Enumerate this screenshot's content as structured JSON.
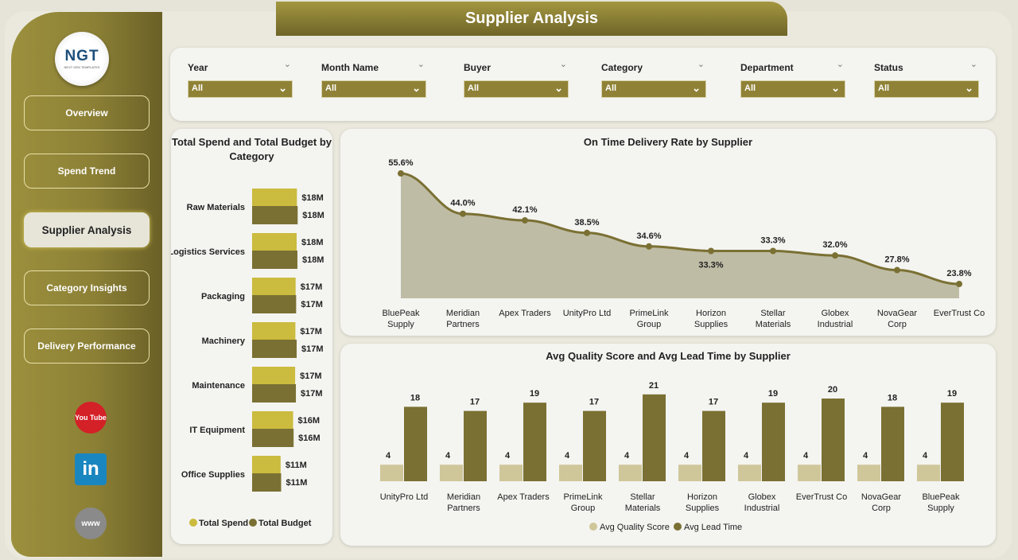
{
  "title": "Supplier Analysis",
  "logo": {
    "text": "NGT",
    "sub": "NEXT GEN TEMPLATES"
  },
  "nav": [
    {
      "label": "Overview"
    },
    {
      "label": "Spend Trend"
    },
    {
      "label": "Supplier Analysis",
      "active": true
    },
    {
      "label": "Category Insights"
    },
    {
      "label": "Delivery Performance"
    }
  ],
  "social": {
    "youtube": "You Tube",
    "linkedin": "in",
    "web": "www"
  },
  "filters": [
    {
      "label": "Year",
      "value": "All"
    },
    {
      "label": "Month Name",
      "value": "All"
    },
    {
      "label": "Buyer",
      "value": "All"
    },
    {
      "label": "Category",
      "value": "All"
    },
    {
      "label": "Department",
      "value": "All"
    },
    {
      "label": "Status",
      "value": "All"
    }
  ],
  "colors": {
    "spend": "#cbbb3e",
    "budget": "#7a7033",
    "line": "#7a7033",
    "area": "#bfbca5",
    "quality": "#cfc79a",
    "lead": "#7a7033"
  },
  "chart_data": [
    {
      "type": "bar",
      "orientation": "horizontal",
      "title": "Total Spend and Total Budget by Category",
      "categories": [
        "Raw Materials",
        "Logistics Services",
        "Packaging",
        "Machinery",
        "Maintenance",
        "IT Equipment",
        "Office Supplies"
      ],
      "series": [
        {
          "name": "Total Spend",
          "values": [
            17.6,
            17.5,
            17.1,
            17.0,
            16.9,
            16.1,
            11.2
          ],
          "labels": [
            "$18M",
            "$18M",
            "$17M",
            "$17M",
            "$17M",
            "$16M",
            "$11M"
          ]
        },
        {
          "name": "Total Budget",
          "values": [
            17.9,
            17.8,
            17.3,
            17.5,
            17.2,
            16.3,
            11.4
          ],
          "labels": [
            "$18M",
            "$18M",
            "$17M",
            "$17M",
            "$17M",
            "$16M",
            "$11M"
          ]
        }
      ],
      "legend": "bottom"
    },
    {
      "type": "area",
      "title": "On Time Delivery Rate by Supplier",
      "categories": [
        "BluePeak Supply",
        "Meridian Partners",
        "Apex Traders",
        "UnityPro Ltd",
        "PrimeLink Group",
        "Horizon Supplies",
        "Stellar Materials",
        "Globex Industrial",
        "NovaGear Corp",
        "EverTrust Co"
      ],
      "values": [
        55.6,
        44.0,
        42.1,
        38.5,
        34.6,
        33.3,
        33.3,
        32.0,
        27.8,
        23.8
      ],
      "labels": [
        "55.6%",
        "44.0%",
        "42.1%",
        "38.5%",
        "34.6%",
        "33.3%",
        "33.3%",
        "32.0%",
        "27.8%",
        "23.8%"
      ]
    },
    {
      "type": "bar",
      "title": "Avg Quality Score and Avg Lead Time by Supplier",
      "categories": [
        "UnityPro Ltd",
        "Meridian Partners",
        "Apex Traders",
        "PrimeLink Group",
        "Stellar Materials",
        "Horizon Supplies",
        "Globex Industrial",
        "EverTrust Co",
        "NovaGear Corp",
        "BluePeak Supply"
      ],
      "series": [
        {
          "name": "Avg Quality Score",
          "values": [
            4,
            4,
            4,
            4,
            4,
            4,
            4,
            4,
            4,
            4
          ]
        },
        {
          "name": "Avg Lead Time",
          "values": [
            18,
            17,
            19,
            17,
            21,
            17,
            19,
            20,
            18,
            19
          ]
        }
      ],
      "legend": "bottom"
    }
  ]
}
